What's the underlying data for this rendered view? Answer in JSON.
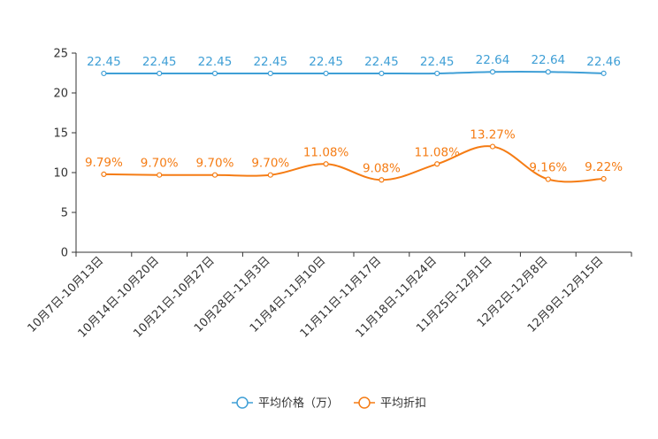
{
  "chart_data": {
    "type": "line",
    "categories": [
      "10月7日-10月13日",
      "10月14日-10月20日",
      "10月21日-10月27日",
      "10月28日-11月3日",
      "11月4日-11月10日",
      "11月11日-11月17日",
      "11月18日-11月24日",
      "11月25日-12月1日",
      "12月2日-12月8日",
      "12月9日-12月15日"
    ],
    "series": [
      {
        "name": "平均价格（万）",
        "color": "#3f9fd6",
        "values": [
          22.45,
          22.45,
          22.45,
          22.45,
          22.45,
          22.45,
          22.45,
          22.64,
          22.64,
          22.46
        ],
        "labels": [
          "22.45",
          "22.45",
          "22.45",
          "22.45",
          "22.45",
          "22.45",
          "22.45",
          "22.64",
          "22.64",
          "22.46"
        ]
      },
      {
        "name": "平均折扣",
        "color": "#f57c14",
        "values": [
          9.79,
          9.7,
          9.7,
          9.7,
          11.08,
          9.08,
          11.08,
          13.27,
          9.16,
          9.22
        ],
        "labels": [
          "9.79%",
          "9.70%",
          "9.70%",
          "9.70%",
          "11.08%",
          "9.08%",
          "11.08%",
          "13.27%",
          "9.16%",
          "9.22%"
        ]
      }
    ],
    "ylim": [
      0,
      25
    ],
    "yticks": [
      0,
      5,
      10,
      15,
      20,
      25
    ],
    "title": "",
    "xlabel": "",
    "ylabel": "",
    "legend_position": "bottom-center"
  }
}
